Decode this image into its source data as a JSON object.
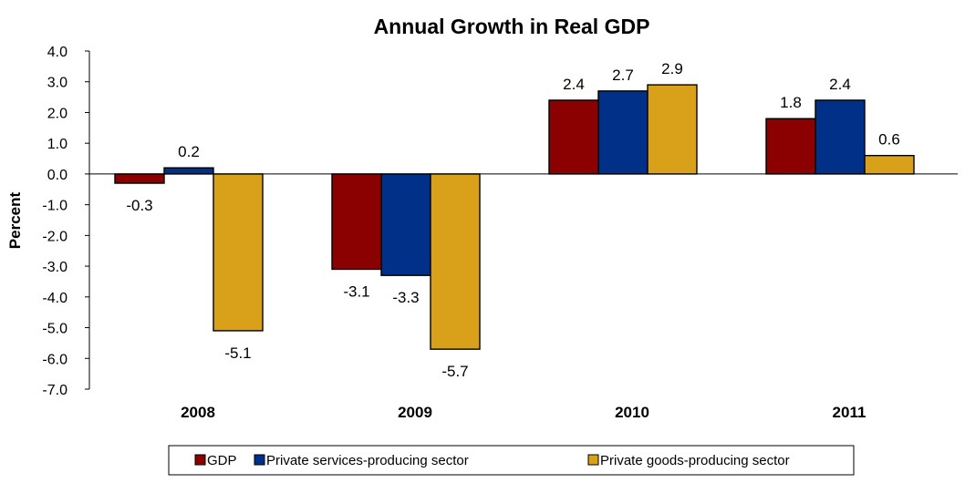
{
  "chart_data": {
    "type": "bar",
    "title": "Annual Growth in Real GDP",
    "ylabel": "Percent",
    "xlabel": "",
    "categories": [
      "2008",
      "2009",
      "2010",
      "2011"
    ],
    "ylim": [
      -7.0,
      4.0
    ],
    "yticks": [
      "4.0",
      "3.0",
      "2.0",
      "1.0",
      "0.0",
      "-1.0",
      "-2.0",
      "-3.0",
      "-4.0",
      "-5.0",
      "-6.0",
      "-7.0"
    ],
    "ytick_values": [
      4,
      3,
      2,
      1,
      0,
      -1,
      -2,
      -3,
      -4,
      -5,
      -6,
      -7
    ],
    "legend_position": "bottom",
    "grid": false,
    "series": [
      {
        "name": "GDP",
        "color": "#8B0000",
        "values": [
          -0.3,
          -3.1,
          2.4,
          1.8
        ],
        "labels": [
          "-0.3",
          "-3.1",
          "2.4",
          "1.8"
        ]
      },
      {
        "name": "Private services-producing sector",
        "color": "#003087",
        "values": [
          0.2,
          -3.3,
          2.7,
          2.4
        ],
        "labels": [
          "0.2",
          "-3.3",
          "2.7",
          "2.4"
        ]
      },
      {
        "name": "Private goods-producing sector",
        "color": "#D9A11A",
        "values": [
          -5.1,
          -5.7,
          2.9,
          0.6
        ],
        "labels": [
          "-5.1",
          "-5.7",
          "2.9",
          "0.6"
        ]
      }
    ]
  }
}
